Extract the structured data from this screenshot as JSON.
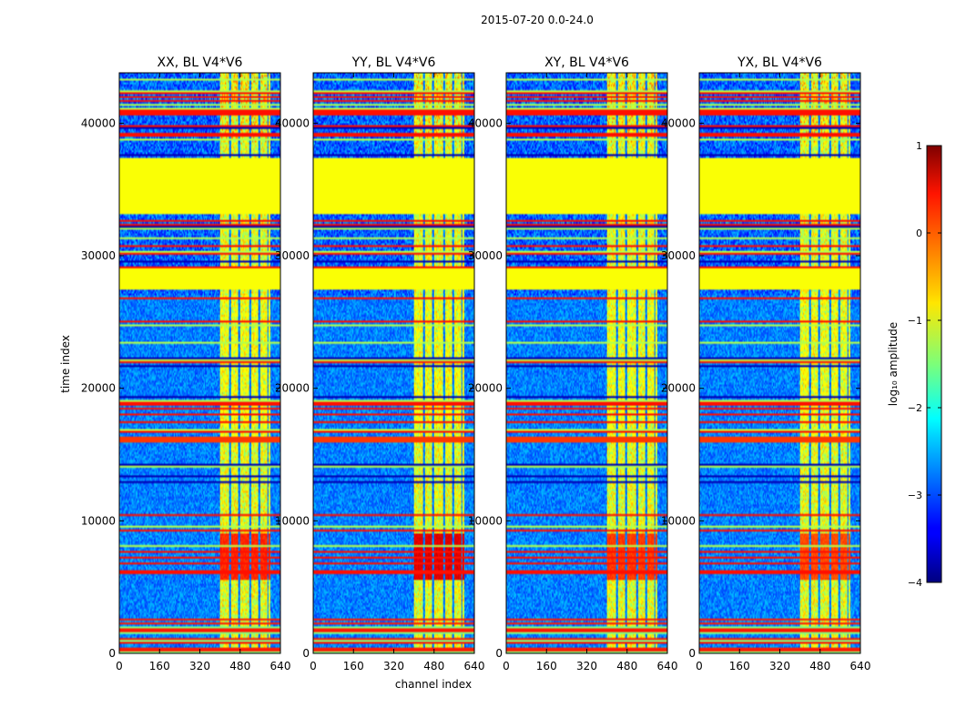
{
  "figure": {
    "suptitle": "2015-07-20 0.0-24.0",
    "xlabel": "channel index",
    "ylabel": "time index"
  },
  "chart_data": {
    "type": "heatmap",
    "x_ticks": [
      "0",
      "160",
      "320",
      "480",
      "640"
    ],
    "x_tick_values": [
      0,
      160,
      320,
      480,
      640
    ],
    "xlim": [
      0,
      640
    ],
    "y_ticks": [
      "0",
      "10000",
      "20000",
      "30000",
      "40000"
    ],
    "y_tick_values": [
      0,
      10000,
      20000,
      30000,
      40000
    ],
    "ylim": [
      0,
      43800
    ],
    "panels": [
      {
        "title": "XX, BL V4*V6",
        "hot": 0.75
      },
      {
        "title": "YY, BL V4*V6",
        "hot": 0.95
      },
      {
        "title": "XY, BL V4*V6",
        "hot": 0.7
      },
      {
        "title": "YX, BL V4*V6",
        "hot": 0.65
      }
    ],
    "data_features": {
      "flagged_time_bands": [
        [
          33200,
          37400
        ],
        [
          27500,
          29000
        ]
      ],
      "hot_channel_band": [
        400,
        600
      ],
      "dark_channel_lines": [
        440,
        475,
        520,
        555,
        590
      ],
      "hot_time_range": [
        5500,
        9000
      ],
      "flag_value_log10": -0.9
    },
    "colorbar": {
      "label": "log₁₀ amplitude",
      "ticks": [
        "1",
        "0",
        "−1",
        "−2",
        "−3",
        "−4"
      ],
      "tick_values": [
        1,
        0,
        -1,
        -2,
        -3,
        -4
      ],
      "vmin": -4,
      "vmax": 1,
      "colormap": "jet"
    }
  }
}
